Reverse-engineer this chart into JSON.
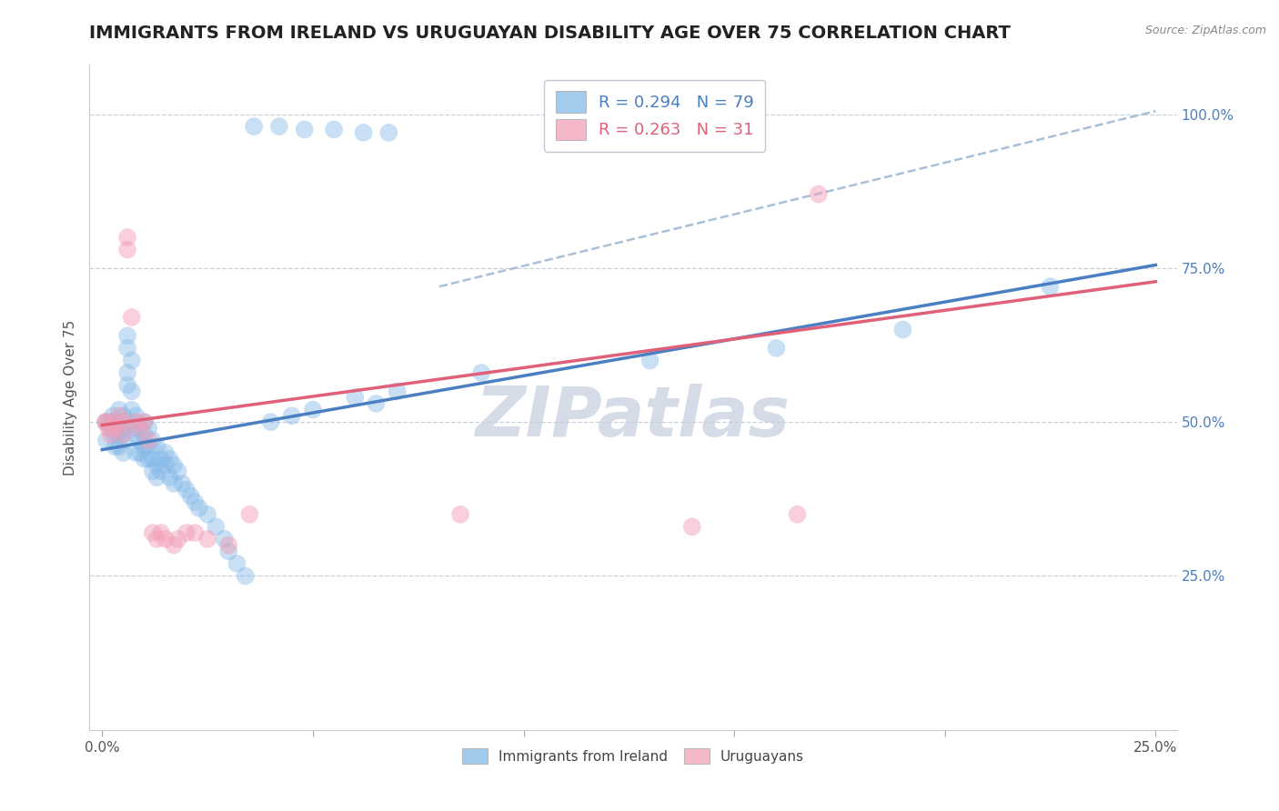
{
  "title": "IMMIGRANTS FROM IRELAND VS URUGUAYAN DISABILITY AGE OVER 75 CORRELATION CHART",
  "source": "Source: ZipAtlas.com",
  "ylabel": "Disability Age Over 75",
  "ireland_color": "#85bae8",
  "uruguayan_color": "#f2a0b8",
  "ireland_line_color": "#4a7fc1",
  "uruguayan_line_color": "#e0607a",
  "ireland_R": 0.294,
  "ireland_N": 79,
  "uruguayan_R": 0.263,
  "uruguayan_N": 31,
  "ireland_trend": [
    0.0,
    0.25,
    0.455,
    0.755
  ],
  "uruguayan_trend": [
    0.0,
    0.25,
    0.495,
    0.728
  ],
  "dashed_line": [
    0.08,
    0.25,
    0.72,
    1.005
  ],
  "xlim": [
    -0.003,
    0.255
  ],
  "ylim": [
    0.0,
    1.08
  ],
  "xtick_vals": [
    0.0,
    0.05,
    0.1,
    0.15,
    0.2,
    0.25
  ],
  "xtick_show": [
    0.0,
    0.25
  ],
  "ytick_vals": [
    0.25,
    0.5,
    0.75,
    1.0
  ],
  "ytick_labels": [
    "25.0%",
    "50.0%",
    "75.0%",
    "100.0%"
  ],
  "background_color": "#ffffff",
  "title_fontsize": 14,
  "axis_label_fontsize": 11,
  "tick_fontsize": 11,
  "legend_fontsize": 13,
  "watermark_text": "ZIPatlas",
  "watermark_color": "#d5dce8",
  "watermark_fontsize": 55,
  "ireland_x": [
    0.0008,
    0.001,
    0.0015,
    0.002,
    0.002,
    0.0025,
    0.003,
    0.003,
    0.003,
    0.003,
    0.004,
    0.004,
    0.004,
    0.004,
    0.004,
    0.005,
    0.005,
    0.005,
    0.005,
    0.005,
    0.006,
    0.006,
    0.006,
    0.006,
    0.007,
    0.007,
    0.007,
    0.007,
    0.008,
    0.008,
    0.008,
    0.008,
    0.009,
    0.009,
    0.009,
    0.01,
    0.01,
    0.01,
    0.01,
    0.011,
    0.011,
    0.011,
    0.012,
    0.012,
    0.012,
    0.013,
    0.013,
    0.013,
    0.014,
    0.014,
    0.015,
    0.015,
    0.016,
    0.016,
    0.017,
    0.017,
    0.018,
    0.019,
    0.02,
    0.021,
    0.022,
    0.023,
    0.025,
    0.027,
    0.029,
    0.03,
    0.032,
    0.034,
    0.04,
    0.045,
    0.05,
    0.06,
    0.065,
    0.07,
    0.09,
    0.13,
    0.16,
    0.19,
    0.225
  ],
  "ireland_y": [
    0.5,
    0.47,
    0.5,
    0.5,
    0.49,
    0.51,
    0.5,
    0.49,
    0.48,
    0.46,
    0.52,
    0.5,
    0.49,
    0.48,
    0.46,
    0.51,
    0.49,
    0.48,
    0.47,
    0.45,
    0.64,
    0.62,
    0.58,
    0.56,
    0.6,
    0.55,
    0.52,
    0.5,
    0.51,
    0.49,
    0.48,
    0.45,
    0.49,
    0.47,
    0.45,
    0.5,
    0.48,
    0.46,
    0.44,
    0.49,
    0.46,
    0.44,
    0.47,
    0.44,
    0.42,
    0.46,
    0.43,
    0.41,
    0.44,
    0.42,
    0.45,
    0.43,
    0.44,
    0.41,
    0.43,
    0.4,
    0.42,
    0.4,
    0.39,
    0.38,
    0.37,
    0.36,
    0.35,
    0.33,
    0.31,
    0.29,
    0.27,
    0.25,
    0.5,
    0.51,
    0.52,
    0.54,
    0.53,
    0.55,
    0.58,
    0.6,
    0.62,
    0.65,
    0.72
  ],
  "ireland_top_x": [
    0.036,
    0.042,
    0.048,
    0.055,
    0.062,
    0.068
  ],
  "ireland_top_y": [
    0.98,
    0.98,
    0.975,
    0.975,
    0.97,
    0.97
  ],
  "uruguayan_x": [
    0.0008,
    0.001,
    0.0015,
    0.002,
    0.003,
    0.003,
    0.004,
    0.005,
    0.005,
    0.006,
    0.006,
    0.007,
    0.008,
    0.009,
    0.01,
    0.011,
    0.012,
    0.013,
    0.014,
    0.015,
    0.017,
    0.018,
    0.02,
    0.022,
    0.025,
    0.03,
    0.035,
    0.085,
    0.14,
    0.165,
    0.17
  ],
  "uruguayan_y": [
    0.5,
    0.5,
    0.49,
    0.48,
    0.5,
    0.49,
    0.51,
    0.5,
    0.48,
    0.8,
    0.78,
    0.67,
    0.5,
    0.49,
    0.5,
    0.47,
    0.32,
    0.31,
    0.32,
    0.31,
    0.3,
    0.31,
    0.32,
    0.32,
    0.31,
    0.3,
    0.35,
    0.35,
    0.33,
    0.35,
    0.87
  ]
}
